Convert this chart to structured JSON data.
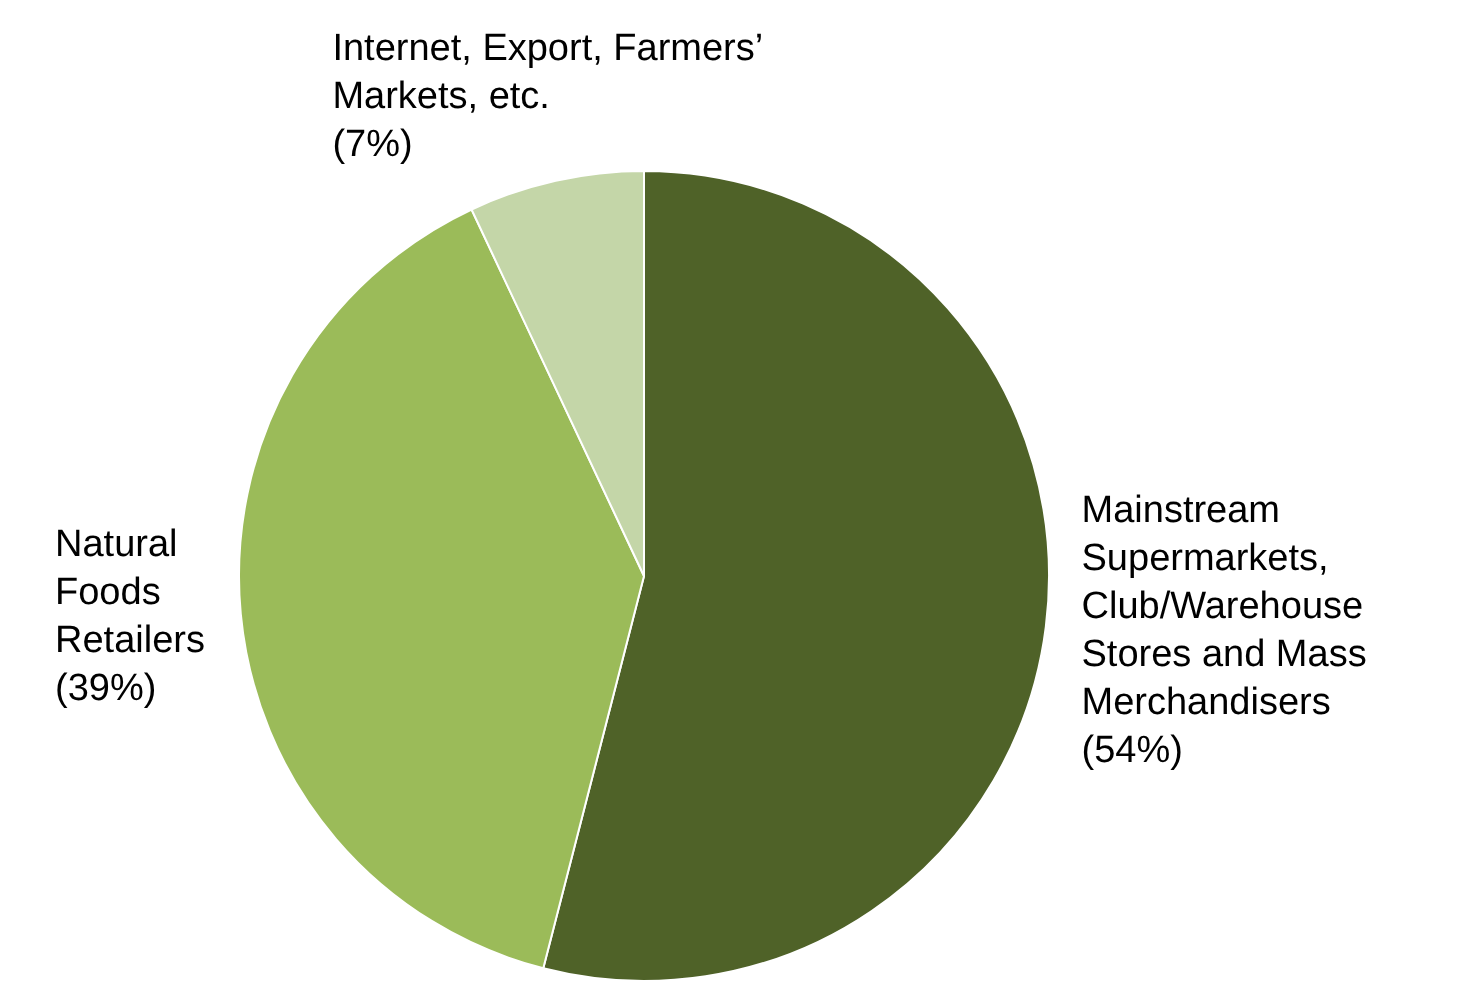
{
  "chart_data": {
    "type": "pie",
    "categories": [
      "Mainstream Supermarkets, Club/Warehouse Stores and Mass Merchandisers",
      "Natural Foods Retailers",
      "Internet, Export, Farmers’ Markets, etc."
    ],
    "values": [
      54,
      39,
      7
    ],
    "colors": [
      "#4f6228",
      "#9bbb59",
      "#c4d6a8"
    ],
    "value_labels": [
      "(54%)",
      "(39%)",
      "(7%)"
    ],
    "legend": false
  }
}
